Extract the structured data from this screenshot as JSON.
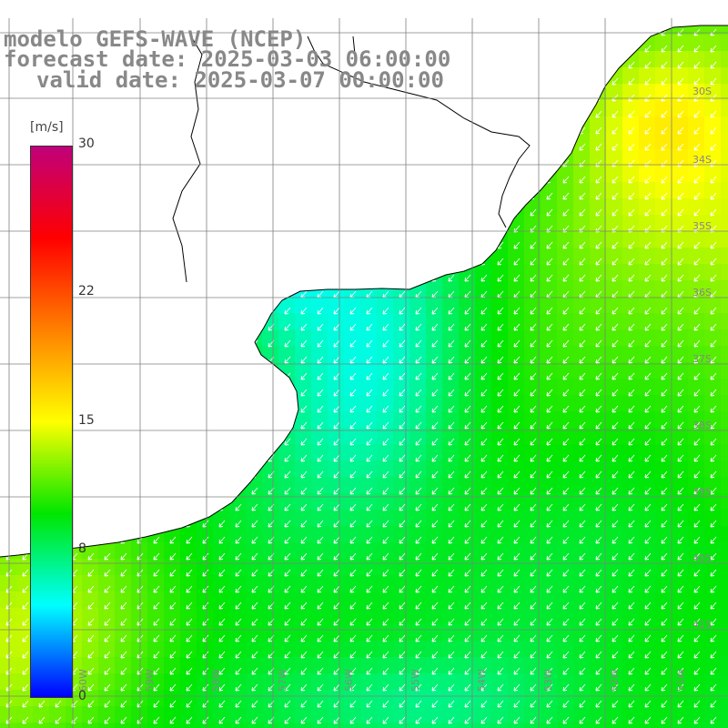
{
  "titles": {
    "model": "modelo GEFS-WAVE (NCEP)",
    "forecast": "forecast date: 2025-03-03 06:00:00",
    "valid": "valid date: 2025-03-07 00:00:00"
  },
  "colorbar": {
    "unit": "[m/s]",
    "ticks": [
      "30",
      "22",
      "15",
      "8",
      "0"
    ],
    "tick_values": [
      30,
      22,
      15,
      8,
      0
    ],
    "min": 0,
    "max": 30,
    "colors": [
      "#0000ff",
      "#00ffff",
      "#00e600",
      "#ffff00",
      "#ff8000",
      "#ff0000",
      "#c0007a"
    ]
  },
  "map": {
    "variable": "wind speed with direction arrows",
    "land_color": "#ffffff",
    "grid_color": "#808080",
    "arrow_color": "#ffffff",
    "lat_labels": [
      "30S",
      "34S",
      "35S",
      "36S",
      "37S",
      "38S",
      "39S",
      "40S",
      "41S"
    ],
    "lon_labels": [
      "60W",
      "59W",
      "58W",
      "57W",
      "56W",
      "55W",
      "54W",
      "53W",
      "52W",
      "51W"
    ]
  }
}
